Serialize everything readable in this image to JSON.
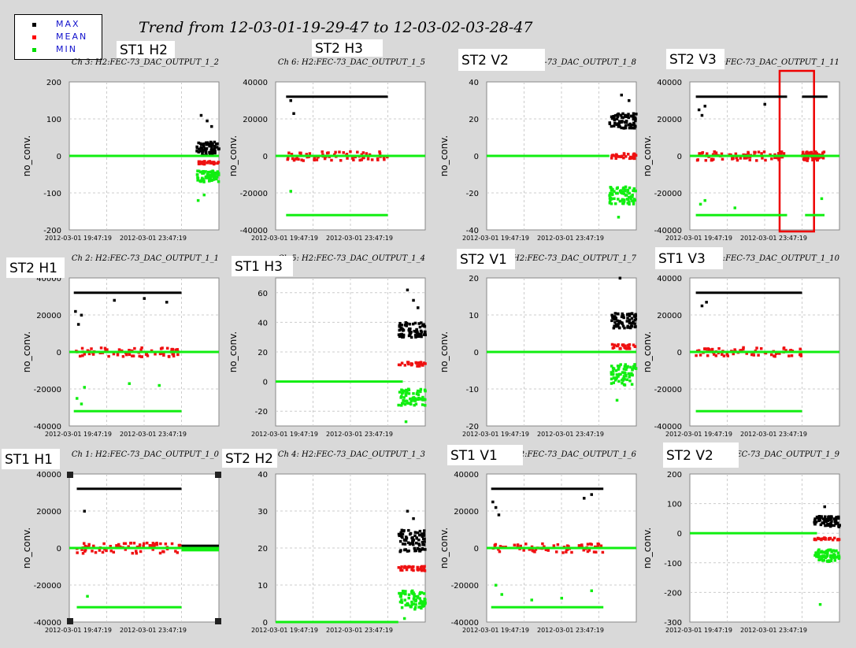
{
  "title": "Trend from 12-03-01-19-29-47 to 12-03-02-03-28-47",
  "legend": {
    "items": [
      {
        "label": "MAX",
        "color": "#000000"
      },
      {
        "label": "MEAN",
        "color": "#ff0000"
      },
      {
        "label": "MIN",
        "color": "#00dd00"
      }
    ]
  },
  "colors": {
    "max": "#000000",
    "mean": "#ee1111",
    "min": "#11ee11",
    "highlight": "#ee0000"
  },
  "chart_data": [
    {
      "type": "scatter",
      "label": "ST1_H2",
      "channel": "Ch 3: H2:FEC-73_DAC_OUTPUT_1_2",
      "ylabel": "no_conv.",
      "ylim": [
        -200,
        200
      ],
      "yticks": [
        200,
        100,
        0,
        -100,
        -200
      ],
      "xticks": [
        "2012-03-01 19:47:19",
        "2012-03-01 23:47:19"
      ],
      "series": [
        {
          "name": "MAX",
          "mode": "noisy",
          "x_range": [
            0.85,
            1.0
          ],
          "value": 20,
          "spread": 18,
          "outliers": [
            [
              0.88,
              110
            ],
            [
              0.92,
              95
            ],
            [
              0.95,
              80
            ]
          ]
        },
        {
          "name": "MEAN",
          "mode": "band",
          "x_range": [
            0.85,
            1.0
          ],
          "value": -18,
          "spread": 4
        },
        {
          "name": "MIN",
          "mode": "line",
          "x_range": [
            0.0,
            1.0
          ],
          "value": 0
        },
        {
          "name": "MIN",
          "mode": "noisy",
          "x_range": [
            0.85,
            1.0
          ],
          "value": -55,
          "spread": 15,
          "outliers": [
            [
              0.86,
              -120
            ],
            [
              0.9,
              -105
            ]
          ]
        }
      ]
    },
    {
      "type": "scatter",
      "label": "ST2_H3",
      "channel": "Ch 6: H2:FEC-73_DAC_OUTPUT_1_5",
      "ylabel": "no_conv.",
      "ylim": [
        -40000,
        40000
      ],
      "yticks": [
        40000,
        20000,
        0,
        -20000,
        -40000
      ],
      "xticks": [
        "2012-03-01 19:47:19",
        "2012-03-01 23:47:19"
      ],
      "series": [
        {
          "name": "MAX",
          "mode": "line",
          "x_range": [
            0.07,
            0.75
          ],
          "value": 32000,
          "outliers": [
            [
              0.1,
              30000
            ],
            [
              0.12,
              23000
            ]
          ]
        },
        {
          "name": "MEAN",
          "mode": "noisy",
          "x_range": [
            0.07,
            0.75
          ],
          "value": 0,
          "spread": 2500
        },
        {
          "name": "MIN",
          "mode": "line",
          "x_range": [
            0.0,
            1.0
          ],
          "value": 0
        },
        {
          "name": "MIN",
          "mode": "line",
          "x_range": [
            0.07,
            0.75
          ],
          "value": -32000,
          "outliers": [
            [
              0.1,
              -19000
            ]
          ]
        }
      ]
    },
    {
      "type": "scatter",
      "label": "ST2_V2",
      "channel": "Ch 9: H2:FEC-73_DAC_OUTPUT_1_8",
      "ylabel": "no_conv.",
      "ylim": [
        -40,
        40
      ],
      "yticks": [
        40,
        20,
        0,
        -20,
        -40
      ],
      "xticks": [
        "2012-03-01 19:47:19",
        "2012-03-01 23:47:19"
      ],
      "series": [
        {
          "name": "MAX",
          "mode": "noisy",
          "x_range": [
            0.82,
            1.0
          ],
          "value": 19,
          "spread": 4,
          "outliers": [
            [
              0.9,
              33
            ],
            [
              0.95,
              30
            ]
          ]
        },
        {
          "name": "MEAN",
          "mode": "band",
          "x_range": [
            0.82,
            1.0
          ],
          "value": 0,
          "spread": 1.5
        },
        {
          "name": "MIN",
          "mode": "line",
          "x_range": [
            0.0,
            0.82
          ],
          "value": 0
        },
        {
          "name": "MIN",
          "mode": "noisy",
          "x_range": [
            0.82,
            1.0
          ],
          "value": -21,
          "spread": 5,
          "outliers": [
            [
              0.88,
              -33
            ]
          ]
        }
      ]
    },
    {
      "type": "scatter",
      "label": "ST2_V3",
      "channel": "Ch 12: H2:FEC-73_DAC_OUTPUT_1_11",
      "ylabel": "no_conv.",
      "ylim": [
        -40000,
        40000
      ],
      "yticks": [
        40000,
        20000,
        0,
        -20000,
        -40000
      ],
      "xticks": [
        "2012-03-01 19:47:19",
        "2012-03-01 23:47:19"
      ],
      "highlight": [
        0.6,
        0.83
      ],
      "series": [
        {
          "name": "MAX",
          "mode": "line",
          "x_range": [
            0.04,
            0.65
          ],
          "value": 32000,
          "outliers": [
            [
              0.06,
              25000
            ],
            [
              0.08,
              22000
            ],
            [
              0.1,
              27000
            ],
            [
              0.5,
              28000
            ]
          ]
        },
        {
          "name": "MAX",
          "mode": "line",
          "x_range": [
            0.75,
            0.92
          ],
          "value": 32000
        },
        {
          "name": "MEAN",
          "mode": "noisy",
          "x_range": [
            0.04,
            0.63
          ],
          "value": 0,
          "spread": 2500
        },
        {
          "name": "MEAN",
          "mode": "noisy",
          "x_range": [
            0.75,
            0.9
          ],
          "value": 0,
          "spread": 2500
        },
        {
          "name": "MIN",
          "mode": "line",
          "x_range": [
            0.0,
            1.0
          ],
          "value": 0
        },
        {
          "name": "MIN",
          "mode": "line",
          "x_range": [
            0.04,
            0.65
          ],
          "value": -32000,
          "outliers": [
            [
              0.07,
              -26000
            ],
            [
              0.1,
              -24000
            ],
            [
              0.3,
              -28000
            ]
          ]
        },
        {
          "name": "MIN",
          "mode": "line",
          "x_range": [
            0.77,
            0.9
          ],
          "value": -32000,
          "outliers": [
            [
              0.88,
              -23000
            ]
          ]
        }
      ]
    },
    {
      "type": "scatter",
      "label": "ST2_H1",
      "channel": "Ch 2: H2:FEC-73_DAC_OUTPUT_1_1",
      "ylabel": "no_conv.",
      "ylim": [
        -40000,
        40000
      ],
      "yticks": [
        40000,
        20000,
        0,
        -20000,
        -40000
      ],
      "xticks": [
        "2012-03-01 19:47:19",
        "2012-03-01 23:47:19"
      ],
      "series": [
        {
          "name": "MAX",
          "mode": "line",
          "x_range": [
            0.03,
            0.75
          ],
          "value": 32000,
          "outliers": [
            [
              0.04,
              22000
            ],
            [
              0.06,
              15000
            ],
            [
              0.08,
              20000
            ],
            [
              0.3,
              28000
            ],
            [
              0.5,
              29000
            ],
            [
              0.65,
              27000
            ]
          ]
        },
        {
          "name": "MEAN",
          "mode": "noisy",
          "x_range": [
            0.03,
            0.75
          ],
          "value": 0,
          "spread": 2500
        },
        {
          "name": "MIN",
          "mode": "line",
          "x_range": [
            0.0,
            1.0
          ],
          "value": 0
        },
        {
          "name": "MIN",
          "mode": "line",
          "x_range": [
            0.03,
            0.75
          ],
          "value": -32000,
          "outliers": [
            [
              0.05,
              -25000
            ],
            [
              0.08,
              -28000
            ],
            [
              0.1,
              -19000
            ],
            [
              0.4,
              -17000
            ],
            [
              0.6,
              -18000
            ]
          ]
        }
      ]
    },
    {
      "type": "scatter",
      "label": "ST1_H3",
      "channel": "Ch 5: H2:FEC-73_DAC_OUTPUT_1_4",
      "ylabel": "no_conv.",
      "ylim": [
        -30,
        70
      ],
      "yticks": [
        60,
        40,
        20,
        0,
        -20
      ],
      "xticks": [
        "2012-03-01 19:47:19",
        "2012-03-01 23:47:19"
      ],
      "series": [
        {
          "name": "MAX",
          "mode": "noisy",
          "x_range": [
            0.82,
            1.0
          ],
          "value": 35,
          "spread": 5,
          "outliers": [
            [
              0.88,
              62
            ],
            [
              0.92,
              55
            ],
            [
              0.95,
              50
            ]
          ]
        },
        {
          "name": "MEAN",
          "mode": "band",
          "x_range": [
            0.82,
            1.0
          ],
          "value": 12,
          "spread": 1.5
        },
        {
          "name": "MIN",
          "mode": "line",
          "x_range": [
            0.0,
            0.85
          ],
          "value": 0
        },
        {
          "name": "MIN",
          "mode": "noisy",
          "x_range": [
            0.82,
            1.0
          ],
          "value": -10,
          "spread": 6,
          "outliers": [
            [
              0.87,
              -27
            ]
          ]
        }
      ]
    },
    {
      "type": "scatter",
      "label": "ST2_V1",
      "channel": "Ch 8: H2:FEC-73_DAC_OUTPUT_1_7",
      "ylabel": "no_conv.",
      "ylim": [
        -20,
        20
      ],
      "yticks": [
        20,
        10,
        0,
        -10,
        -20
      ],
      "xticks": [
        "2012-03-01 19:47:19",
        "2012-03-01 23:47:19"
      ],
      "series": [
        {
          "name": "MAX",
          "mode": "noisy",
          "x_range": [
            0.83,
            1.0
          ],
          "value": 8.5,
          "spread": 2,
          "outliers": [
            [
              0.89,
              20
            ]
          ]
        },
        {
          "name": "MEAN",
          "mode": "band",
          "x_range": [
            0.83,
            1.0
          ],
          "value": 1.5,
          "spread": 0.6
        },
        {
          "name": "MIN",
          "mode": "line",
          "x_range": [
            0.0,
            1.0
          ],
          "value": 0
        },
        {
          "name": "MIN",
          "mode": "noisy",
          "x_range": [
            0.83,
            1.0
          ],
          "value": -6,
          "spread": 3,
          "outliers": [
            [
              0.87,
              -13
            ]
          ]
        }
      ]
    },
    {
      "type": "scatter",
      "label": "ST1_V3",
      "channel": "Ch 11: H2:FEC-73_DAC_OUTPUT_1_10",
      "ylabel": "no_conv.",
      "ylim": [
        -40000,
        40000
      ],
      "yticks": [
        40000,
        20000,
        0,
        -20000,
        -40000
      ],
      "xticks": [
        "2012-03-01 19:47:19",
        "2012-03-01 23:47:19"
      ],
      "series": [
        {
          "name": "MAX",
          "mode": "line",
          "x_range": [
            0.04,
            0.75
          ],
          "value": 32000,
          "outliers": [
            [
              0.08,
              25000
            ],
            [
              0.11,
              27000
            ]
          ]
        },
        {
          "name": "MEAN",
          "mode": "noisy",
          "x_range": [
            0.04,
            0.75
          ],
          "value": 0,
          "spread": 2500
        },
        {
          "name": "MIN",
          "mode": "line",
          "x_range": [
            0.0,
            1.0
          ],
          "value": 0
        },
        {
          "name": "MIN",
          "mode": "line",
          "x_range": [
            0.04,
            0.75
          ],
          "value": -32000
        }
      ]
    },
    {
      "type": "scatter",
      "label": "ST1_H1",
      "channel": "Ch 1: H2:FEC-73_DAC_OUTPUT_1_0",
      "ylabel": "no_conv.",
      "ylim": [
        -40000,
        40000
      ],
      "yticks": [
        40000,
        20000,
        0,
        -20000,
        -40000
      ],
      "xticks": [
        "2012-03-01 19:47:19",
        "2012-03-01 23:47:19"
      ],
      "corner_marks": true,
      "series": [
        {
          "name": "MAX",
          "mode": "line",
          "x_range": [
            0.05,
            0.75
          ],
          "value": 32000,
          "outliers": [
            [
              0.1,
              20000
            ]
          ]
        },
        {
          "name": "MEAN",
          "mode": "noisy",
          "x_range": [
            0.05,
            0.75
          ],
          "value": 0,
          "spread": 2800
        },
        {
          "name": "MAX",
          "mode": "line",
          "x_range": [
            0.75,
            1.0
          ],
          "value": 1200
        },
        {
          "name": "MIN",
          "mode": "line",
          "x_range": [
            0.0,
            1.0
          ],
          "value": 0
        },
        {
          "name": "MIN",
          "mode": "line",
          "x_range": [
            0.75,
            1.0
          ],
          "value": -1200
        },
        {
          "name": "MIN",
          "mode": "line",
          "x_range": [
            0.05,
            0.75
          ],
          "value": -32000,
          "outliers": [
            [
              0.12,
              -26000
            ]
          ]
        }
      ]
    },
    {
      "type": "scatter",
      "label": "ST2_H2",
      "channel": "Ch 4: H2:FEC-73_DAC_OUTPUT_1_3",
      "ylabel": "",
      "ylim": [
        0,
        40
      ],
      "yticks": [
        40,
        30,
        20,
        10,
        0
      ],
      "xticks": [
        "2012-03-01 19:47:19",
        "2012-03-01 23:47:19"
      ],
      "series": [
        {
          "name": "MAX",
          "mode": "noisy",
          "x_range": [
            0.82,
            1.0
          ],
          "value": 22,
          "spread": 3,
          "outliers": [
            [
              0.88,
              30
            ],
            [
              0.92,
              28
            ]
          ]
        },
        {
          "name": "MEAN",
          "mode": "band",
          "x_range": [
            0.82,
            1.0
          ],
          "value": 14.5,
          "spread": 0.6
        },
        {
          "name": "MIN",
          "mode": "line",
          "x_range": [
            0.0,
            0.82
          ],
          "value": 0
        },
        {
          "name": "MIN",
          "mode": "noisy",
          "x_range": [
            0.82,
            1.0
          ],
          "value": 6,
          "spread": 2.5,
          "outliers": [
            [
              0.86,
              1
            ]
          ]
        }
      ]
    },
    {
      "type": "scatter",
      "label": "ST1_V1",
      "channel": "Ch 7: H2:FEC-73_DAC_OUTPUT_1_6",
      "ylabel": "no_conv.",
      "ylim": [
        -40000,
        40000
      ],
      "yticks": [
        40000,
        20000,
        0,
        -20000,
        -40000
      ],
      "xticks": [
        "2012-03-01 19:47:19",
        "2012-03-01 23:47:19"
      ],
      "series": [
        {
          "name": "MAX",
          "mode": "line",
          "x_range": [
            0.03,
            0.78
          ],
          "value": 32000,
          "outliers": [
            [
              0.04,
              25000
            ],
            [
              0.06,
              22000
            ],
            [
              0.08,
              18000
            ],
            [
              0.65,
              27000
            ],
            [
              0.7,
              29000
            ]
          ]
        },
        {
          "name": "MEAN",
          "mode": "noisy",
          "x_range": [
            0.03,
            0.78
          ],
          "value": 0,
          "spread": 2500
        },
        {
          "name": "MIN",
          "mode": "line",
          "x_range": [
            0.0,
            1.0
          ],
          "value": 0
        },
        {
          "name": "MIN",
          "mode": "line",
          "x_range": [
            0.03,
            0.78
          ],
          "value": -32000,
          "outliers": [
            [
              0.06,
              -20000
            ],
            [
              0.1,
              -25000
            ],
            [
              0.3,
              -28000
            ],
            [
              0.5,
              -27000
            ],
            [
              0.7,
              -23000
            ]
          ]
        }
      ]
    },
    {
      "type": "scatter",
      "label": "ST2_V2",
      "channel": "Ch 10: H2:FEC-73_DAC_OUTPUT_1_9",
      "ylabel": "no_conv.",
      "ylim": [
        -300,
        200
      ],
      "yticks": [
        200,
        100,
        0,
        -100,
        -200,
        -300
      ],
      "xticks": [
        "2012-03-01 19:47:19",
        "2012-03-01 23:47:19"
      ],
      "series": [
        {
          "name": "MAX",
          "mode": "noisy",
          "x_range": [
            0.83,
            1.0
          ],
          "value": 40,
          "spread": 18,
          "outliers": [
            [
              0.9,
              90
            ]
          ]
        },
        {
          "name": "MEAN",
          "mode": "band",
          "x_range": [
            0.83,
            1.0
          ],
          "value": -18,
          "spread": 4
        },
        {
          "name": "MIN",
          "mode": "line",
          "x_range": [
            0.0,
            0.85
          ],
          "value": 0
        },
        {
          "name": "MIN",
          "mode": "noisy",
          "x_range": [
            0.83,
            1.0
          ],
          "value": -75,
          "spread": 20,
          "outliers": [
            [
              0.87,
              -240
            ]
          ]
        }
      ]
    }
  ]
}
